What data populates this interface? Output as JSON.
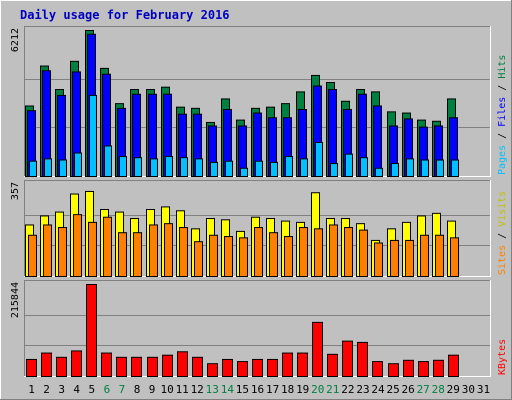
{
  "chart_data": {
    "type": "bar",
    "title": "Daily usage for February 2016",
    "categories": [
      "1",
      "2",
      "3",
      "4",
      "5",
      "6",
      "7",
      "8",
      "9",
      "10",
      "11",
      "12",
      "13",
      "14",
      "15",
      "16",
      "17",
      "18",
      "19",
      "20",
      "21",
      "22",
      "23",
      "24",
      "25",
      "26",
      "27",
      "28",
      "29",
      "30",
      "31"
    ],
    "weekend_days": [
      "6",
      "7",
      "13",
      "14",
      "20",
      "21",
      "27",
      "28"
    ],
    "panels": [
      {
        "id": "top",
        "ymax_label": "6212",
        "ymax": 6212,
        "ylim": [
          0,
          6212
        ],
        "right_labels": [
          {
            "text": "Hits",
            "color": "#008040"
          },
          {
            "text": " / ",
            "color": "#000000"
          },
          {
            "text": "Files",
            "color": "#0000ff"
          },
          {
            "text": " / ",
            "color": "#000000"
          },
          {
            "text": "Pages",
            "color": "#00c0ff"
          }
        ],
        "series": [
          {
            "name": "Hits",
            "color": "#008040",
            "values": [
              3000,
              4700,
              3700,
              4900,
              6212,
              4600,
              3100,
              3700,
              3700,
              3800,
              2950,
              2900,
              2300,
              3300,
              2400,
              2900,
              2950,
              3100,
              3600,
              4300,
              4000,
              3200,
              3700,
              3600,
              2750,
              2700,
              2400,
              2350,
              3300,
              0,
              0
            ]
          },
          {
            "name": "Files",
            "color": "#0000ff",
            "values": [
              2800,
              4500,
              3450,
              4450,
              6050,
              4350,
              2900,
              3500,
              3500,
              3500,
              2650,
              2650,
              2150,
              2850,
              2150,
              2700,
              2500,
              2500,
              2850,
              3850,
              3700,
              2850,
              3500,
              3000,
              2150,
              2450,
              2100,
              2150,
              2500,
              0,
              0
            ]
          },
          {
            "name": "Pages",
            "color": "#00c0ff",
            "values": [
              650,
              750,
              700,
              1000,
              3450,
              1300,
              850,
              800,
              750,
              850,
              800,
              750,
              600,
              650,
              350,
              650,
              600,
              850,
              750,
              1450,
              550,
              950,
              800,
              350,
              550,
              750,
              700,
              700,
              700,
              0,
              0
            ]
          }
        ]
      },
      {
        "id": "mid",
        "ymax_label": "357",
        "ymax": 357,
        "ylim": [
          0,
          357
        ],
        "right_labels": [
          {
            "text": "Visits",
            "color": "#c0c000"
          },
          {
            "text": " / ",
            "color": "#000000"
          },
          {
            "text": "Sites",
            "color": "#ff8000"
          }
        ],
        "series": [
          {
            "name": "Visits",
            "color": "#ffff00",
            "values": [
              200,
              235,
              250,
              320,
              330,
              260,
              250,
              225,
              260,
              270,
              255,
              185,
              225,
              220,
              175,
              230,
              225,
              215,
              210,
              325,
              225,
              225,
              205,
              140,
              185,
              210,
              235,
              245,
              215,
              0,
              0
            ]
          },
          {
            "name": "Sites",
            "color": "#ff8000",
            "values": [
              160,
              200,
              190,
              240,
              210,
              230,
              170,
              170,
              200,
              205,
              190,
              135,
              160,
              155,
              150,
              190,
              170,
              155,
              190,
              185,
              200,
              190,
              180,
              130,
              140,
              140,
              160,
              160,
              150,
              0,
              0
            ]
          }
        ]
      },
      {
        "id": "bot",
        "ymax_label": "215844",
        "ymax": 215844,
        "ylim": [
          0,
          215844
        ],
        "right_labels": [
          {
            "text": "KBytes",
            "color": "#ff0000"
          }
        ],
        "series": [
          {
            "name": "KBytes",
            "color": "#ff0000",
            "values": [
              40000,
              55000,
              45000,
              60000,
              215844,
              55000,
              45000,
              45000,
              45000,
              50000,
              58000,
              45000,
              30000,
              40000,
              35000,
              40000,
              40000,
              55000,
              55000,
              127000,
              52000,
              83000,
              80000,
              35000,
              30000,
              38000,
              35000,
              38000,
              50000,
              0,
              0
            ]
          }
        ]
      }
    ]
  },
  "header": {
    "title": "Daily usage for February 2016"
  }
}
